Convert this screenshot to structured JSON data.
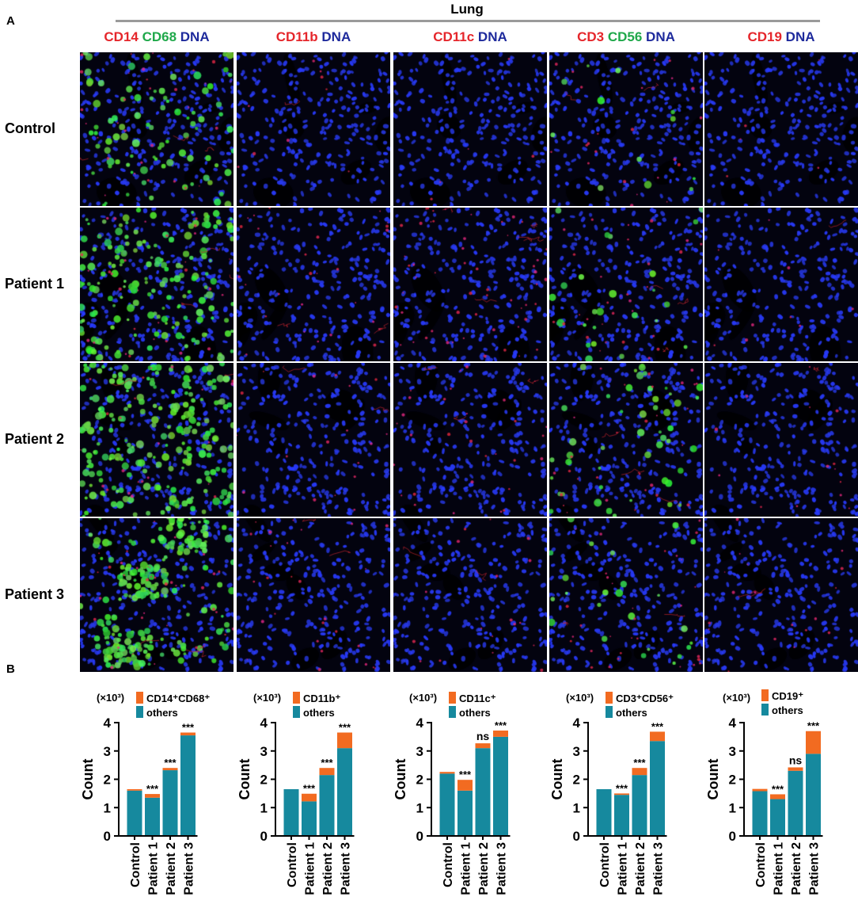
{
  "panel_a_letter": "A",
  "panel_b_letter": "B",
  "tissue_label": "Lung",
  "column_headers": [
    [
      {
        "t": "CD14",
        "c": "#e5262b"
      },
      {
        "t": " CD68",
        "c": "#1fa84a"
      },
      {
        "t": " DNA",
        "c": "#1e2a9c"
      }
    ],
    [
      {
        "t": "CD11b",
        "c": "#e5262b"
      },
      {
        "t": " DNA",
        "c": "#1e2a9c"
      }
    ],
    [
      {
        "t": "CD11c",
        "c": "#e5262b"
      },
      {
        "t": " DNA",
        "c": "#1e2a9c"
      }
    ],
    [
      {
        "t": "CD3",
        "c": "#e5262b"
      },
      {
        "t": " CD56",
        "c": "#1fa84a"
      },
      {
        "t": " DNA",
        "c": "#1e2a9c"
      }
    ],
    [
      {
        "t": "CD19",
        "c": "#e5262b"
      },
      {
        "t": " DNA",
        "c": "#1e2a9c"
      }
    ]
  ],
  "row_labels": [
    "Control",
    "Patient 1",
    "Patient 2",
    "Patient 3"
  ],
  "colors": {
    "others": "#16899e",
    "marker": "#f26b21",
    "red": "#e5262b",
    "green": "#1fa84a",
    "blue": "#1e2a9c",
    "nucleus": "#2a3ad8"
  },
  "micrograph_levels": {
    "green": [
      [
        0.35,
        0,
        0,
        0.05,
        0
      ],
      [
        0.7,
        0,
        0,
        0.1,
        0
      ],
      [
        0.9,
        0,
        0,
        0.2,
        0
      ],
      [
        1.0,
        0,
        0,
        0.1,
        0
      ]
    ],
    "red": [
      [
        0.35,
        0.1,
        0.05,
        0.25,
        0.05
      ],
      [
        0.35,
        0.3,
        0.6,
        0.35,
        0.1
      ],
      [
        0.25,
        0.2,
        0.35,
        0.35,
        0.15
      ],
      [
        0.4,
        0.3,
        0.2,
        0.35,
        0.2
      ]
    ]
  },
  "chart_data": [
    {
      "type": "bar",
      "stacked": true,
      "multiplier": "(×10³)",
      "ylabel": "Count",
      "ylim": [
        0,
        4
      ],
      "yticks": [
        "0",
        "1",
        "2",
        "3",
        "4"
      ],
      "categories": [
        "Control",
        "Patient 1",
        "Patient 2",
        "Patient 3"
      ],
      "series": [
        {
          "name": "CD14⁺CD68⁺",
          "values": [
            0.05,
            0.13,
            0.08,
            0.1
          ]
        },
        {
          "name": "others",
          "values": [
            1.6,
            1.35,
            2.32,
            3.55
          ]
        }
      ],
      "annotations": [
        "",
        "***",
        "***",
        "***"
      ]
    },
    {
      "type": "bar",
      "stacked": true,
      "multiplier": "(×10³)",
      "ylabel": "Count",
      "ylim": [
        0,
        4
      ],
      "yticks": [
        "0",
        "1",
        "2",
        "3",
        "4"
      ],
      "categories": [
        "Control",
        "Patient 1",
        "Patient 2",
        "Patient 3"
      ],
      "series": [
        {
          "name": "CD11b⁺",
          "values": [
            0.0,
            0.27,
            0.25,
            0.55
          ]
        },
        {
          "name": "others",
          "values": [
            1.65,
            1.22,
            2.15,
            3.1
          ]
        }
      ],
      "annotations": [
        "",
        "***",
        "***",
        "***"
      ]
    },
    {
      "type": "bar",
      "stacked": true,
      "multiplier": "(×10³)",
      "ylabel": "Count",
      "ylim": [
        0,
        4
      ],
      "yticks": [
        "0",
        "1",
        "2",
        "3",
        "4"
      ],
      "categories": [
        "Control",
        "Patient 1",
        "Patient 2",
        "Patient 3"
      ],
      "series": [
        {
          "name": "CD11c⁺",
          "values": [
            0.06,
            0.38,
            0.17,
            0.22
          ]
        },
        {
          "name": "others",
          "values": [
            2.2,
            1.6,
            3.1,
            3.5
          ]
        }
      ],
      "annotations": [
        "",
        "***",
        "ns",
        "***"
      ]
    },
    {
      "type": "bar",
      "stacked": true,
      "multiplier": "(×10³)",
      "ylabel": "Count",
      "ylim": [
        0,
        4
      ],
      "yticks": [
        "0",
        "1",
        "2",
        "3",
        "4"
      ],
      "categories": [
        "Control",
        "Patient 1",
        "Patient 2",
        "Patient 3"
      ],
      "series": [
        {
          "name": "CD3⁺CD56⁺",
          "values": [
            0.0,
            0.05,
            0.25,
            0.33
          ]
        },
        {
          "name": "others",
          "values": [
            1.65,
            1.45,
            2.15,
            3.35
          ]
        }
      ],
      "annotations": [
        "",
        "***",
        "***",
        "***"
      ]
    },
    {
      "type": "bar",
      "stacked": true,
      "multiplier": "(×10³)",
      "ylabel": "Count",
      "ylim": [
        0,
        4
      ],
      "yticks": [
        "0",
        "1",
        "2",
        "3",
        "4"
      ],
      "categories": [
        "Control",
        "Patient 1",
        "Patient 2",
        "Patient 3"
      ],
      "series": [
        {
          "name": "CD19⁺",
          "values": [
            0.08,
            0.17,
            0.12,
            0.8
          ]
        },
        {
          "name": "others",
          "values": [
            1.58,
            1.3,
            2.3,
            2.9
          ]
        }
      ],
      "annotations": [
        "",
        "***",
        "ns",
        "***"
      ]
    }
  ]
}
